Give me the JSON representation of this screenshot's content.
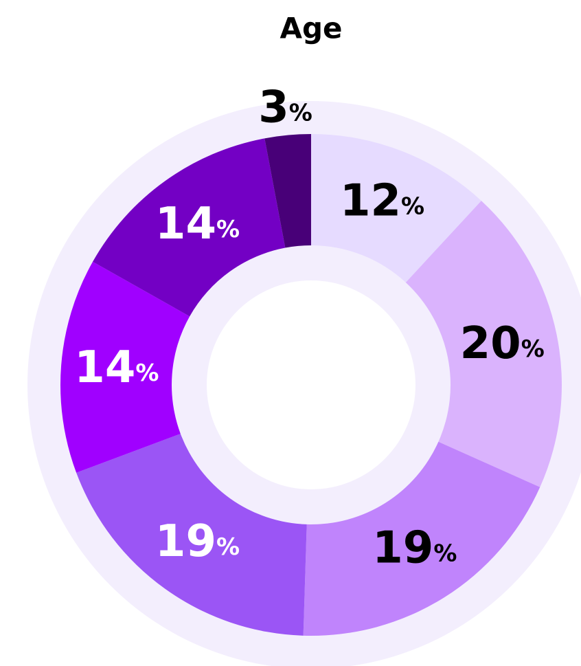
{
  "chart_data": {
    "type": "donut",
    "title": "Age",
    "values": [
      12,
      20,
      19,
      19,
      14,
      14,
      3
    ],
    "value_labels": [
      "12%",
      "20%",
      "19%",
      "19%",
      "14%",
      "14%",
      "3%"
    ],
    "colors": [
      "#e6dbff",
      "#dab3fd",
      "#c084fc",
      "#9b55f5",
      "#a000ff",
      "#7300c4",
      "#480078"
    ],
    "label_colors": [
      "#000000",
      "#000000",
      "#000000",
      "#ffffff",
      "#ffffff",
      "#ffffff",
      "#000000"
    ]
  }
}
